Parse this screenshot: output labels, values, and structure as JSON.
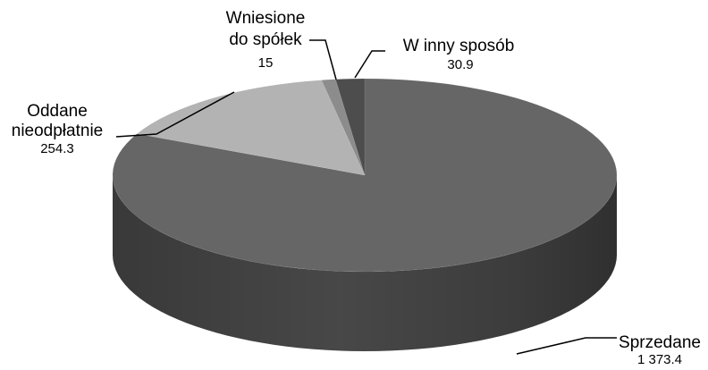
{
  "chart_data": {
    "type": "pie",
    "style": "3d",
    "title": "",
    "start_angle_deg": 0,
    "direction": "clockwise",
    "slices": [
      {
        "name": "Sprzedane",
        "value": 1373.4,
        "value_label": "1 373.4",
        "color": "#666666"
      },
      {
        "name": "Oddane nieodpłatnie",
        "value": 254.3,
        "value_label": "254.3",
        "color": "#b3b3b3"
      },
      {
        "name": "Wniesione do spółek",
        "value": 15,
        "value_label": "15",
        "color": "#8c8c8c"
      },
      {
        "name": "W inny sposób",
        "value": 30.9,
        "value_label": "30.9",
        "color": "#4d4d4d"
      }
    ]
  }
}
